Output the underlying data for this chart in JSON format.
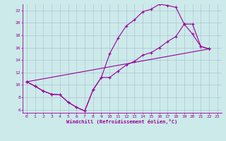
{
  "xlabel": "Windchill (Refroidissement éolien,°C)",
  "bg_color": "#cceaea",
  "line_color": "#990099",
  "grid_color": "#aabbcc",
  "xlim": [
    -0.5,
    23.5
  ],
  "ylim": [
    5.5,
    23.0
  ],
  "yticks": [
    6,
    8,
    10,
    12,
    14,
    16,
    18,
    20,
    22
  ],
  "xticks": [
    0,
    1,
    2,
    3,
    4,
    5,
    6,
    7,
    8,
    9,
    10,
    11,
    12,
    13,
    14,
    15,
    16,
    17,
    18,
    19,
    20,
    21,
    22,
    23
  ],
  "line1_x": [
    0,
    1,
    2,
    3,
    4,
    5,
    6,
    7,
    8,
    9,
    10,
    11,
    12,
    13,
    14,
    15,
    16,
    17,
    18,
    19,
    20,
    21,
    22
  ],
  "line1_y": [
    10.5,
    9.8,
    9.0,
    8.5,
    8.4,
    7.2,
    6.4,
    5.8,
    9.2,
    11.2,
    15.0,
    17.5,
    19.5,
    20.5,
    21.8,
    22.2,
    23.0,
    22.8,
    22.5,
    19.8,
    18.2,
    16.2,
    15.8
  ],
  "line2_x": [
    0,
    1,
    2,
    3,
    4,
    5,
    6,
    7,
    8,
    9,
    10,
    11,
    12,
    13,
    14,
    15,
    16,
    17,
    18,
    19,
    20,
    21,
    22
  ],
  "line2_y": [
    10.5,
    9.8,
    9.0,
    8.5,
    8.4,
    7.2,
    6.4,
    5.8,
    9.2,
    11.2,
    11.2,
    12.2,
    13.2,
    13.8,
    14.8,
    15.2,
    16.0,
    17.0,
    17.8,
    19.8,
    19.8,
    16.2,
    15.8
  ],
  "line3_x": [
    0,
    22
  ],
  "line3_y": [
    10.5,
    15.8
  ]
}
